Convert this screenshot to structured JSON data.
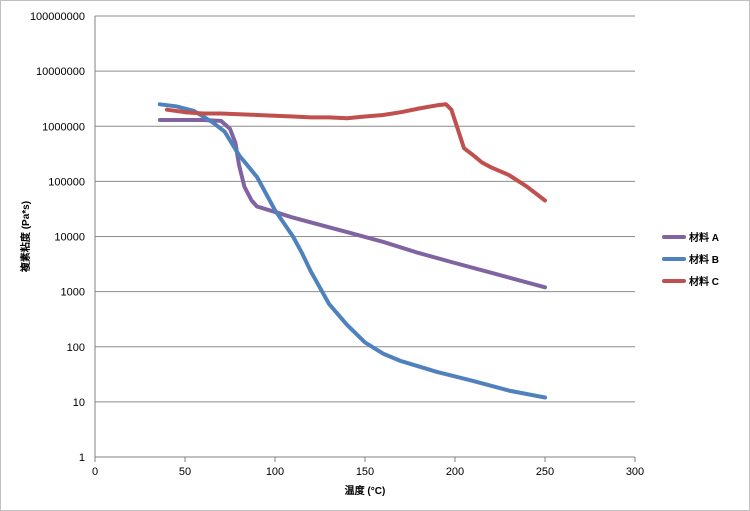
{
  "chart_data": {
    "type": "line",
    "title": "",
    "xlabel": "温度 (°C)",
    "ylabel": "複素粘度 (Pa*s)",
    "xlim": [
      0,
      300
    ],
    "ylim": [
      1,
      100000000
    ],
    "y_scale": "log",
    "grid": "horizontal",
    "legend_position": "right",
    "x_ticks": [
      "0",
      "50",
      "100",
      "150",
      "200",
      "250",
      "300"
    ],
    "y_ticks": [
      "1",
      "10",
      "100",
      "1000",
      "10000",
      "100000",
      "1000000",
      "10000000",
      "100000000"
    ],
    "series": [
      {
        "name": "材料 A",
        "color": "#8064a2",
        "points": [
          [
            36,
            1300000
          ],
          [
            50,
            1300000
          ],
          [
            60,
            1300000
          ],
          [
            70,
            1250000
          ],
          [
            75,
            900000
          ],
          [
            78,
            500000
          ],
          [
            80,
            200000
          ],
          [
            83,
            80000
          ],
          [
            87,
            45000
          ],
          [
            90,
            35000
          ],
          [
            100,
            28000
          ],
          [
            110,
            22000
          ],
          [
            120,
            18000
          ],
          [
            140,
            12000
          ],
          [
            160,
            8000
          ],
          [
            180,
            5000
          ],
          [
            200,
            3300
          ],
          [
            220,
            2200
          ],
          [
            250,
            1200
          ]
        ]
      },
      {
        "name": "材料 B",
        "color": "#4f81bd",
        "points": [
          [
            36,
            2500000
          ],
          [
            45,
            2300000
          ],
          [
            55,
            1900000
          ],
          [
            65,
            1200000
          ],
          [
            72,
            800000
          ],
          [
            80,
            300000
          ],
          [
            90,
            120000
          ],
          [
            100,
            30000
          ],
          [
            110,
            10000
          ],
          [
            115,
            5000
          ],
          [
            120,
            2300
          ],
          [
            130,
            600
          ],
          [
            140,
            250
          ],
          [
            150,
            120
          ],
          [
            160,
            75
          ],
          [
            170,
            55
          ],
          [
            190,
            35
          ],
          [
            210,
            24
          ],
          [
            230,
            16
          ],
          [
            250,
            12
          ]
        ]
      },
      {
        "name": "材料 C",
        "color": "#c0504d",
        "points": [
          [
            40,
            2000000
          ],
          [
            50,
            1800000
          ],
          [
            60,
            1700000
          ],
          [
            70,
            1700000
          ],
          [
            80,
            1650000
          ],
          [
            90,
            1600000
          ],
          [
            100,
            1550000
          ],
          [
            110,
            1500000
          ],
          [
            120,
            1450000
          ],
          [
            130,
            1450000
          ],
          [
            140,
            1400000
          ],
          [
            150,
            1500000
          ],
          [
            160,
            1600000
          ],
          [
            170,
            1800000
          ],
          [
            180,
            2100000
          ],
          [
            190,
            2400000
          ],
          [
            195,
            2500000
          ],
          [
            198,
            2000000
          ],
          [
            202,
            800000
          ],
          [
            205,
            400000
          ],
          [
            210,
            300000
          ],
          [
            215,
            220000
          ],
          [
            220,
            180000
          ],
          [
            230,
            130000
          ],
          [
            240,
            80000
          ],
          [
            250,
            45000
          ]
        ]
      }
    ]
  }
}
